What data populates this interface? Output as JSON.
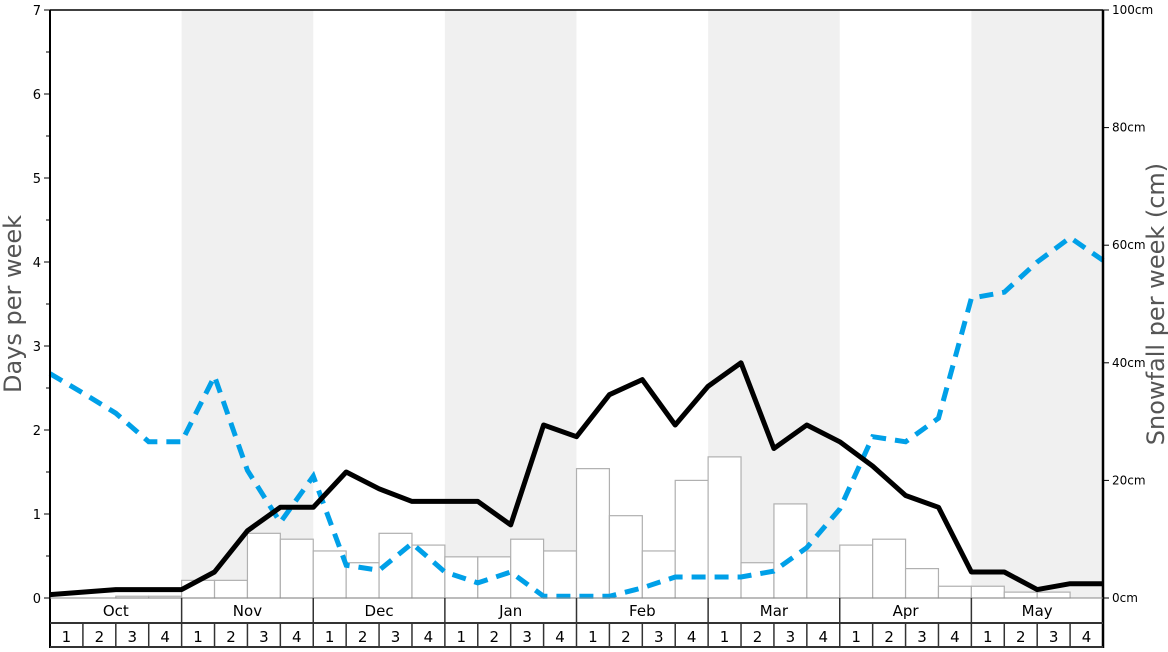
{
  "chart_data": {
    "type": "bar+line",
    "ylabel_left": "Days per week",
    "ylabel_right": "Snowfall per week (cm)",
    "ylim_left": [
      0,
      7
    ],
    "ylim_right": [
      0,
      100
    ],
    "left_ticks": [
      "0",
      "1",
      "2",
      "3",
      "4",
      "5",
      "6",
      "7"
    ],
    "right_ticks": [
      "0cm",
      "20cm",
      "40cm",
      "60cm",
      "80cm",
      "100cm"
    ],
    "months": [
      "Oct",
      "Nov",
      "Dec",
      "Jan",
      "Feb",
      "Mar",
      "Apr",
      "May"
    ],
    "shaded_months": [
      "Nov",
      "Jan",
      "Mar",
      "May"
    ],
    "weeks": [
      "1",
      "2",
      "3",
      "4"
    ],
    "snowfall_bars_cm": [
      0,
      0,
      0.3,
      0.3,
      3,
      3,
      11,
      10,
      8,
      6,
      11,
      9,
      7,
      7,
      10,
      8,
      22,
      14,
      8,
      20,
      24,
      6,
      16,
      8,
      9,
      10,
      5,
      2,
      2,
      1,
      1,
      0
    ],
    "black_line_days": [
      0.04,
      0.07,
      0.1,
      0.1,
      0.1,
      0.31,
      0.8,
      1.08,
      1.08,
      1.5,
      1.3,
      1.15,
      1.15,
      1.15,
      0.87,
      2.06,
      1.92,
      2.42,
      2.6,
      2.06,
      2.52,
      2.8,
      1.78,
      2.06,
      1.86,
      1.57,
      1.22,
      1.08,
      0.31,
      0.31,
      0.1,
      0.17,
      0.17
    ],
    "blue_dashed_line_days": [
      2.67,
      2.44,
      2.2,
      1.86,
      1.86,
      2.64,
      1.52,
      0.9,
      1.45,
      0.39,
      0.33,
      0.65,
      0.31,
      0.18,
      0.31,
      0.02,
      0.02,
      0.02,
      0.12,
      0.25,
      0.25,
      0.25,
      0.32,
      0.6,
      1.06,
      1.92,
      1.86,
      2.14,
      3.57,
      3.64,
      4.0,
      4.29,
      4.02
    ],
    "colors": {
      "black_line": "#000000",
      "blue_line": "#00a0e8",
      "bar_fill": "#ffffff",
      "bar_stroke": "#b0b0b0",
      "shade": "#f0f0f0"
    },
    "grid": false
  }
}
